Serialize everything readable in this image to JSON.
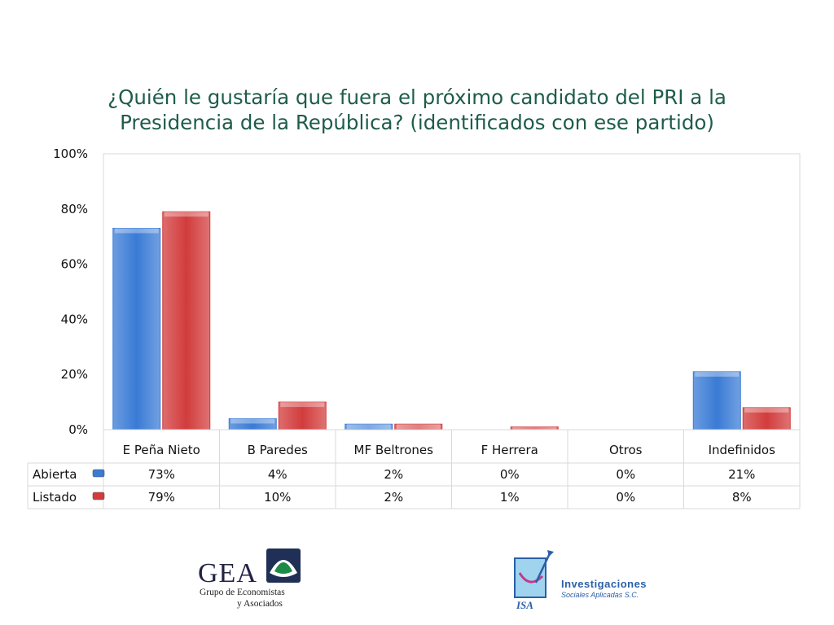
{
  "chart_data": {
    "type": "bar",
    "title_line1": "¿Quién le gustaría que fuera el próximo candidato del PRI a la",
    "title_line2": "Presidencia de la República? (identificados con ese partido)",
    "categories": [
      "E Peña Nieto",
      "B Paredes",
      "MF Beltrones",
      "F Herrera",
      "Otros",
      "Indefinidos"
    ],
    "series": [
      {
        "name": "Abierta",
        "values": [
          73,
          4,
          2,
          0,
          0,
          21
        ],
        "labels": [
          "73%",
          "4%",
          "2%",
          "0%",
          "0%",
          "21%"
        ],
        "color": "#3a7bd5"
      },
      {
        "name": "Listado",
        "values": [
          79,
          10,
          2,
          1,
          0,
          8
        ],
        "labels": [
          "79%",
          "10%",
          "2%",
          "1%",
          "0%",
          "8%"
        ],
        "color": "#d23c3c"
      }
    ],
    "ylim": [
      0,
      100
    ],
    "yticks": [
      "0%",
      "20%",
      "40%",
      "60%",
      "80%",
      "100%"
    ],
    "data_table": true
  },
  "logos": {
    "gea_name": "GEA",
    "gea_line1": "Grupo de Economistas",
    "gea_line2": "y Asociados",
    "isa_letters": "ISA",
    "isa_line1": "Investigaciones",
    "isa_line2": "Sociales Aplicadas S.C."
  }
}
